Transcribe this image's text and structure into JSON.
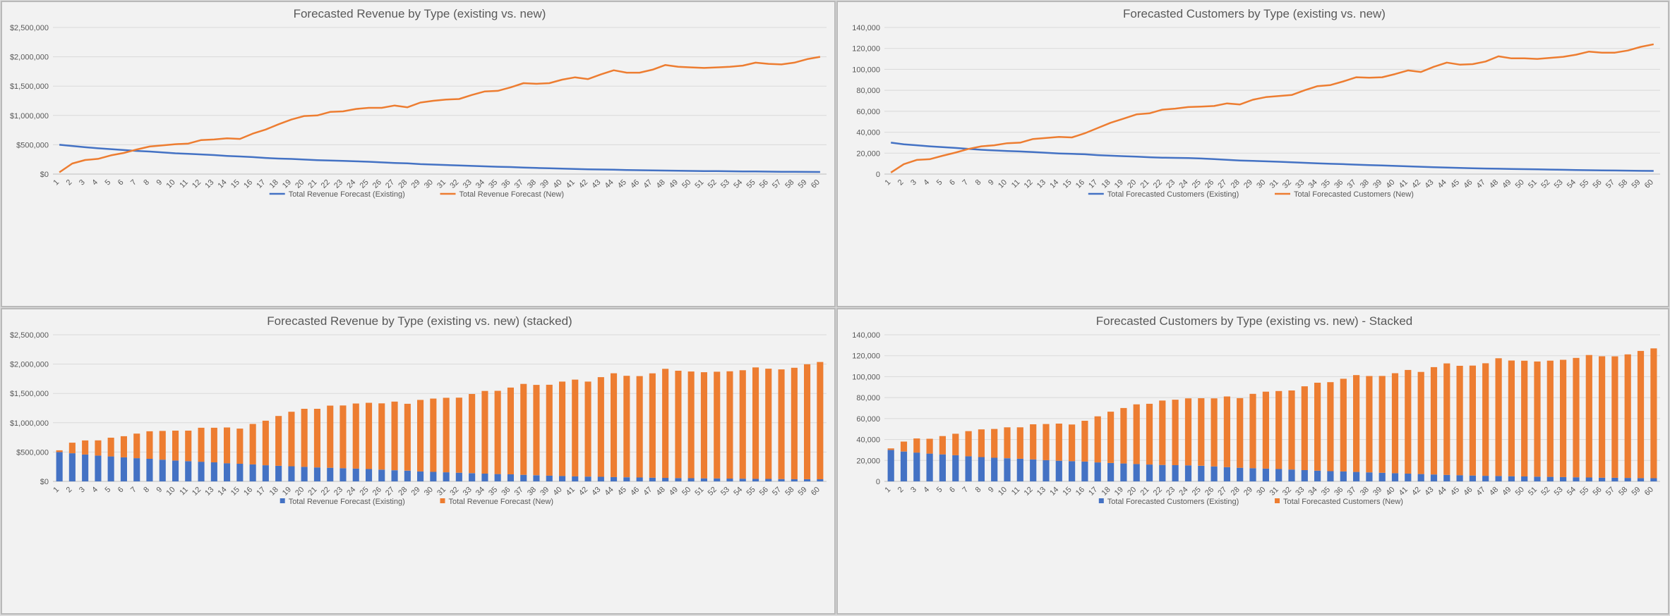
{
  "colors": {
    "existing": "#4472C4",
    "new": "#ED7D31",
    "grid": "#d9d9d9",
    "text": "#595959"
  },
  "chart_data": [
    {
      "type": "line",
      "title": "Forecasted Revenue by Type (existing vs. new)",
      "format": "currency",
      "ylim": [
        0,
        2500000
      ],
      "yticks": [
        0,
        500000,
        1000000,
        1500000,
        2000000,
        2500000
      ],
      "legend_position": "bottom",
      "categories": [
        1,
        2,
        3,
        4,
        5,
        6,
        7,
        8,
        9,
        10,
        11,
        12,
        13,
        14,
        15,
        16,
        17,
        18,
        19,
        20,
        21,
        22,
        23,
        24,
        25,
        26,
        27,
        28,
        29,
        30,
        31,
        32,
        33,
        34,
        35,
        36,
        37,
        38,
        39,
        40,
        41,
        42,
        43,
        44,
        45,
        46,
        47,
        48,
        49,
        50,
        51,
        52,
        53,
        54,
        55,
        56,
        57,
        58,
        59,
        60
      ],
      "series": [
        {
          "name": "Total Revenue Forecast (Existing)",
          "values": [
            500000,
            480000,
            458000,
            440000,
            425000,
            410000,
            395000,
            385000,
            370000,
            355000,
            345000,
            335000,
            325000,
            310000,
            300000,
            290000,
            275000,
            265000,
            258000,
            248000,
            238000,
            232000,
            225000,
            218000,
            210000,
            200000,
            190000,
            183000,
            170000,
            162000,
            155000,
            148000,
            140000,
            132000,
            125000,
            120000,
            112000,
            105000,
            98000,
            92000,
            86000,
            82000,
            78000,
            74000,
            70000,
            66000,
            63000,
            60000,
            57000,
            54000,
            52000,
            50000,
            48000,
            46000,
            44000,
            42000,
            40000,
            38000,
            37000,
            36000
          ]
        },
        {
          "name": "Total Revenue Forecast (New)",
          "values": [
            30000,
            180000,
            240000,
            260000,
            320000,
            360000,
            420000,
            470000,
            490000,
            510000,
            520000,
            580000,
            590000,
            610000,
            600000,
            690000,
            760000,
            850000,
            930000,
            990000,
            1000000,
            1060000,
            1070000,
            1110000,
            1130000,
            1130000,
            1170000,
            1140000,
            1220000,
            1250000,
            1270000,
            1280000,
            1350000,
            1410000,
            1420000,
            1480000,
            1550000,
            1540000,
            1550000,
            1610000,
            1650000,
            1620000,
            1700000,
            1770000,
            1730000,
            1730000,
            1780000,
            1860000,
            1830000,
            1820000,
            1810000,
            1820000,
            1830000,
            1850000,
            1900000,
            1880000,
            1870000,
            1900000,
            1960000,
            2000000
          ]
        }
      ]
    },
    {
      "type": "line",
      "title": "Forecasted Customers by Type (existing vs. new)",
      "format": "number",
      "ylim": [
        0,
        140000
      ],
      "yticks": [
        0,
        20000,
        40000,
        60000,
        80000,
        100000,
        120000,
        140000
      ],
      "legend_position": "bottom",
      "categories": [
        1,
        2,
        3,
        4,
        5,
        6,
        7,
        8,
        9,
        10,
        11,
        12,
        13,
        14,
        15,
        16,
        17,
        18,
        19,
        20,
        21,
        22,
        23,
        24,
        25,
        26,
        27,
        28,
        29,
        30,
        31,
        32,
        33,
        34,
        35,
        36,
        37,
        38,
        39,
        40,
        41,
        42,
        43,
        44,
        45,
        46,
        47,
        48,
        49,
        50,
        51,
        52,
        53,
        54,
        55,
        56,
        57,
        58,
        59,
        60
      ],
      "series": [
        {
          "name": "Total Forecasted Customers (Existing)",
          "values": [
            30000,
            28500,
            27500,
            26500,
            25800,
            25000,
            24000,
            23200,
            22600,
            22100,
            21600,
            21000,
            20300,
            19700,
            19300,
            18900,
            18100,
            17600,
            17100,
            16600,
            16100,
            15700,
            15500,
            15300,
            14900,
            14300,
            13600,
            13000,
            12600,
            12200,
            11800,
            11300,
            10800,
            10200,
            9800,
            9500,
            9000,
            8600,
            8200,
            7800,
            7400,
            7000,
            6600,
            6200,
            5900,
            5600,
            5300,
            5100,
            4900,
            4700,
            4500,
            4300,
            4100,
            3900,
            3700,
            3500,
            3400,
            3300,
            3100,
            3000
          ]
        },
        {
          "name": "Total Forecasted Customers (New)",
          "values": [
            1500,
            9500,
            13500,
            14200,
            17500,
            20500,
            24000,
            26500,
            27500,
            29500,
            30000,
            33500,
            34500,
            35500,
            35000,
            39000,
            44000,
            49000,
            53000,
            57000,
            58000,
            61500,
            62500,
            64000,
            64500,
            65000,
            67500,
            66500,
            71000,
            73500,
            74500,
            75500,
            80000,
            84000,
            85000,
            88500,
            92500,
            92000,
            92500,
            95500,
            99000,
            97500,
            102500,
            106500,
            104500,
            105000,
            107500,
            112500,
            110500,
            110500,
            110000,
            111000,
            112000,
            114000,
            117000,
            116000,
            116000,
            118000,
            121500,
            124000
          ]
        }
      ]
    },
    {
      "type": "bar",
      "stacked": true,
      "title": "Forecasted Revenue by Type (existing vs. new) (stacked)",
      "format": "currency",
      "ylim": [
        0,
        2500000
      ],
      "yticks": [
        0,
        500000,
        1000000,
        1500000,
        2000000,
        2500000
      ],
      "legend_position": "bottom",
      "categories": [
        1,
        2,
        3,
        4,
        5,
        6,
        7,
        8,
        9,
        10,
        11,
        12,
        13,
        14,
        15,
        16,
        17,
        18,
        19,
        20,
        21,
        22,
        23,
        24,
        25,
        26,
        27,
        28,
        29,
        30,
        31,
        32,
        33,
        34,
        35,
        36,
        37,
        38,
        39,
        40,
        41,
        42,
        43,
        44,
        45,
        46,
        47,
        48,
        49,
        50,
        51,
        52,
        53,
        54,
        55,
        56,
        57,
        58,
        59,
        60
      ],
      "series": [
        {
          "name": "Total Revenue Forecast (Existing)",
          "values": [
            500000,
            480000,
            458000,
            440000,
            425000,
            410000,
            395000,
            385000,
            370000,
            355000,
            345000,
            335000,
            325000,
            310000,
            300000,
            290000,
            275000,
            265000,
            258000,
            248000,
            238000,
            232000,
            225000,
            218000,
            210000,
            200000,
            190000,
            183000,
            170000,
            162000,
            155000,
            148000,
            140000,
            132000,
            125000,
            120000,
            112000,
            105000,
            98000,
            92000,
            86000,
            82000,
            78000,
            74000,
            70000,
            66000,
            63000,
            60000,
            57000,
            54000,
            52000,
            50000,
            48000,
            46000,
            44000,
            42000,
            40000,
            38000,
            37000,
            36000
          ]
        },
        {
          "name": "Total Revenue Forecast (New)",
          "values": [
            30000,
            180000,
            240000,
            260000,
            320000,
            360000,
            420000,
            470000,
            490000,
            510000,
            520000,
            580000,
            590000,
            610000,
            600000,
            690000,
            760000,
            850000,
            930000,
            990000,
            1000000,
            1060000,
            1070000,
            1110000,
            1130000,
            1130000,
            1170000,
            1140000,
            1220000,
            1250000,
            1270000,
            1280000,
            1350000,
            1410000,
            1420000,
            1480000,
            1550000,
            1540000,
            1550000,
            1610000,
            1650000,
            1620000,
            1700000,
            1770000,
            1730000,
            1730000,
            1780000,
            1860000,
            1830000,
            1820000,
            1810000,
            1820000,
            1830000,
            1850000,
            1900000,
            1880000,
            1870000,
            1900000,
            1960000,
            2000000
          ]
        }
      ]
    },
    {
      "type": "bar",
      "stacked": true,
      "title": "Forecasted Customers by Type (existing vs. new) - Stacked",
      "format": "number",
      "ylim": [
        0,
        140000
      ],
      "yticks": [
        0,
        20000,
        40000,
        60000,
        80000,
        100000,
        120000,
        140000
      ],
      "legend_position": "bottom",
      "categories": [
        1,
        2,
        3,
        4,
        5,
        6,
        7,
        8,
        9,
        10,
        11,
        12,
        13,
        14,
        15,
        16,
        17,
        18,
        19,
        20,
        21,
        22,
        23,
        24,
        25,
        26,
        27,
        28,
        29,
        30,
        31,
        32,
        33,
        34,
        35,
        36,
        37,
        38,
        39,
        40,
        41,
        42,
        43,
        44,
        45,
        46,
        47,
        48,
        49,
        50,
        51,
        52,
        53,
        54,
        55,
        56,
        57,
        58,
        59,
        60
      ],
      "series": [
        {
          "name": "Total Forecasted Customers (Existing)",
          "values": [
            30000,
            28500,
            27500,
            26500,
            25800,
            25000,
            24000,
            23200,
            22600,
            22100,
            21600,
            21000,
            20300,
            19700,
            19300,
            18900,
            18100,
            17600,
            17100,
            16600,
            16100,
            15700,
            15500,
            15300,
            14900,
            14300,
            13600,
            13000,
            12600,
            12200,
            11800,
            11300,
            10800,
            10200,
            9800,
            9500,
            9000,
            8600,
            8200,
            7800,
            7400,
            7000,
            6600,
            6200,
            5900,
            5600,
            5300,
            5100,
            4900,
            4700,
            4500,
            4300,
            4100,
            3900,
            3700,
            3500,
            3400,
            3300,
            3100,
            3000
          ]
        },
        {
          "name": "Total Forecasted Customers (New)",
          "values": [
            1500,
            9500,
            13500,
            14200,
            17500,
            20500,
            24000,
            26500,
            27500,
            29500,
            30000,
            33500,
            34500,
            35500,
            35000,
            39000,
            44000,
            49000,
            53000,
            57000,
            58000,
            61500,
            62500,
            64000,
            64500,
            65000,
            67500,
            66500,
            71000,
            73500,
            74500,
            75500,
            80000,
            84000,
            85000,
            88500,
            92500,
            92000,
            92500,
            95500,
            99000,
            97500,
            102500,
            106500,
            104500,
            105000,
            107500,
            112500,
            110500,
            110500,
            110000,
            111000,
            112000,
            114000,
            117000,
            116000,
            116000,
            118000,
            121500,
            124000
          ]
        }
      ]
    }
  ]
}
